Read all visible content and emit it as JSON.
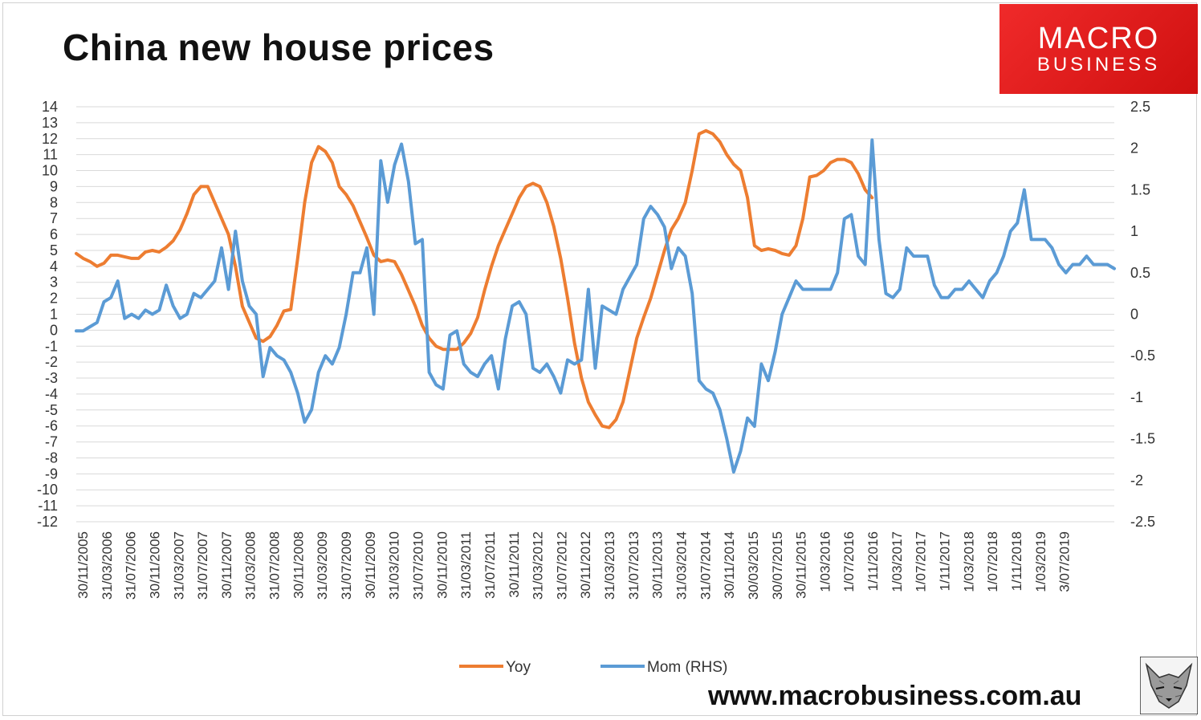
{
  "header": {
    "title": "China new house prices",
    "logo_line1": "MACRO",
    "logo_line2": "BUSINESS"
  },
  "footer": {
    "website": "www.macrobusiness.com.au",
    "fox_icon": "fox-logo-icon"
  },
  "colors": {
    "yoy": "#ED7D31",
    "mom": "#5B9BD5",
    "grid": "#d9d9d9",
    "logo": "#e41e1e"
  },
  "chart_data": {
    "type": "line",
    "title": "China new house prices",
    "x_tick_labels": [
      "30/11/2005",
      "31/03/2006",
      "31/07/2006",
      "30/11/2006",
      "31/03/2007",
      "31/07/2007",
      "30/11/2007",
      "31/03/2008",
      "31/07/2008",
      "30/11/2008",
      "31/03/2009",
      "31/07/2009",
      "30/11/2009",
      "31/03/2010",
      "31/07/2010",
      "30/11/2010",
      "31/03/2011",
      "31/07/2011",
      "30/11/2011",
      "31/03/2012",
      "31/07/2012",
      "30/11/2012",
      "31/03/2013",
      "31/07/2013",
      "30/11/2013",
      "31/03/2014",
      "31/07/2014",
      "30/11/2014",
      "30/03/2015",
      "30/07/2015",
      "30/11/2015",
      "1/03/2016",
      "1/07/2016",
      "1/11/2016",
      "1/03/2017",
      "1/07/2017",
      "1/11/2017",
      "1/03/2018",
      "1/07/2018",
      "1/11/2018",
      "1/03/2019",
      "3/07/2019"
    ],
    "y_left": {
      "min": -12,
      "max": 14,
      "step": 1
    },
    "y_right": {
      "min": -2.5,
      "max": 2.5,
      "step": 0.5,
      "tick_labels": [
        "2.5",
        "2",
        "1.5",
        "1",
        "0.5",
        "0",
        "-0.5",
        "-1",
        "-1.5",
        "-2",
        "-2.5"
      ]
    },
    "legend_position": "bottom",
    "grid": true,
    "series": [
      {
        "name": "Yoy",
        "axis": "left",
        "points": [
          [
            0,
            4.8
          ],
          [
            1,
            4.5
          ],
          [
            2,
            4.3
          ],
          [
            3,
            4.0
          ],
          [
            4,
            4.2
          ],
          [
            5,
            4.7
          ],
          [
            6,
            4.7
          ],
          [
            7,
            4.6
          ],
          [
            8,
            4.5
          ],
          [
            9,
            4.5
          ],
          [
            10,
            4.9
          ],
          [
            11,
            5.0
          ],
          [
            12,
            4.9
          ],
          [
            13,
            5.2
          ],
          [
            14,
            5.6
          ],
          [
            15,
            6.3
          ],
          [
            16,
            7.3
          ],
          [
            17,
            8.5
          ],
          [
            18,
            9.0
          ],
          [
            19,
            9.0
          ],
          [
            20,
            8.0
          ],
          [
            21,
            7.0
          ],
          [
            22,
            6.0
          ],
          [
            23,
            4.0
          ],
          [
            24,
            1.5
          ],
          [
            25,
            0.5
          ],
          [
            26,
            -0.5
          ],
          [
            27,
            -0.7
          ],
          [
            28,
            -0.4
          ],
          [
            29,
            0.3
          ],
          [
            30,
            1.2
          ],
          [
            31,
            1.3
          ],
          [
            32,
            4.5
          ],
          [
            33,
            8.0
          ],
          [
            34,
            10.5
          ],
          [
            35,
            11.5
          ],
          [
            36,
            11.2
          ],
          [
            37,
            10.5
          ],
          [
            38,
            9.0
          ],
          [
            39,
            8.5
          ],
          [
            40,
            7.8
          ],
          [
            41,
            6.8
          ],
          [
            42,
            5.8
          ],
          [
            43,
            4.7
          ],
          [
            44,
            4.3
          ],
          [
            45,
            4.4
          ],
          [
            46,
            4.3
          ],
          [
            47,
            3.5
          ],
          [
            48,
            2.5
          ],
          [
            49,
            1.5
          ],
          [
            50,
            0.3
          ],
          [
            51,
            -0.5
          ],
          [
            52,
            -1.0
          ],
          [
            53,
            -1.2
          ],
          [
            54,
            -1.2
          ],
          [
            55,
            -1.2
          ],
          [
            56,
            -0.8
          ],
          [
            57,
            -0.2
          ],
          [
            58,
            0.8
          ],
          [
            59,
            2.5
          ],
          [
            60,
            4.0
          ],
          [
            61,
            5.3
          ],
          [
            62,
            6.3
          ],
          [
            63,
            7.3
          ],
          [
            64,
            8.3
          ],
          [
            65,
            9.0
          ],
          [
            66,
            9.2
          ],
          [
            67,
            9.0
          ],
          [
            68,
            8.0
          ],
          [
            69,
            6.5
          ],
          [
            70,
            4.5
          ],
          [
            71,
            2.0
          ],
          [
            72,
            -0.8
          ],
          [
            73,
            -3.0
          ],
          [
            74,
            -4.5
          ],
          [
            75,
            -5.3
          ],
          [
            76,
            -6.0
          ],
          [
            77,
            -6.1
          ],
          [
            78,
            -5.6
          ],
          [
            79,
            -4.5
          ],
          [
            80,
            -2.5
          ],
          [
            81,
            -0.5
          ],
          [
            82,
            0.8
          ],
          [
            83,
            2.0
          ],
          [
            84,
            3.5
          ],
          [
            85,
            5.0
          ],
          [
            86,
            6.3
          ],
          [
            87,
            7.0
          ],
          [
            88,
            8.0
          ],
          [
            89,
            10.0
          ],
          [
            90,
            12.3
          ],
          [
            91,
            12.5
          ],
          [
            92,
            12.3
          ],
          [
            93,
            11.8
          ],
          [
            94,
            11.0
          ],
          [
            95,
            10.4
          ],
          [
            96,
            10.0
          ],
          [
            97,
            8.3
          ],
          [
            98,
            5.3
          ],
          [
            99,
            5.0
          ],
          [
            100,
            5.1
          ],
          [
            101,
            5.0
          ],
          [
            102,
            4.8
          ],
          [
            103,
            4.7
          ],
          [
            104,
            5.3
          ],
          [
            105,
            7.0
          ],
          [
            106,
            9.6
          ],
          [
            107,
            9.7
          ],
          [
            108,
            10.0
          ],
          [
            109,
            10.5
          ],
          [
            110,
            10.7
          ],
          [
            111,
            10.7
          ],
          [
            112,
            10.5
          ],
          [
            113,
            9.8
          ],
          [
            114,
            8.8
          ],
          [
            115,
            8.3
          ]
        ]
      },
      {
        "name": "Mom (RHS)",
        "axis": "right",
        "points": [
          [
            0,
            -0.2
          ],
          [
            1,
            -0.2
          ],
          [
            2,
            -0.15
          ],
          [
            3,
            -0.1
          ],
          [
            4,
            0.15
          ],
          [
            5,
            0.2
          ],
          [
            6,
            0.4
          ],
          [
            7,
            -0.05
          ],
          [
            8,
            0.0
          ],
          [
            9,
            -0.05
          ],
          [
            10,
            0.05
          ],
          [
            11,
            0.0
          ],
          [
            12,
            0.05
          ],
          [
            13,
            0.35
          ],
          [
            14,
            0.1
          ],
          [
            15,
            -0.05
          ],
          [
            16,
            0.0
          ],
          [
            17,
            0.25
          ],
          [
            18,
            0.2
          ],
          [
            19,
            0.3
          ],
          [
            20,
            0.4
          ],
          [
            21,
            0.8
          ],
          [
            22,
            0.3
          ],
          [
            23,
            1.0
          ],
          [
            24,
            0.4
          ],
          [
            25,
            0.1
          ],
          [
            26,
            0.0
          ],
          [
            27,
            -0.75
          ],
          [
            28,
            -0.4
          ],
          [
            29,
            -0.5
          ],
          [
            30,
            -0.55
          ],
          [
            31,
            -0.7
          ],
          [
            32,
            -0.95
          ],
          [
            33,
            -1.3
          ],
          [
            34,
            -1.15
          ],
          [
            35,
            -0.7
          ],
          [
            36,
            -0.5
          ],
          [
            37,
            -0.6
          ],
          [
            38,
            -0.4
          ],
          [
            39,
            0.0
          ],
          [
            40,
            0.5
          ],
          [
            41,
            0.5
          ],
          [
            42,
            0.8
          ],
          [
            43,
            0.0
          ],
          [
            44,
            1.85
          ],
          [
            45,
            1.35
          ],
          [
            46,
            1.8
          ],
          [
            47,
            2.05
          ],
          [
            48,
            1.6
          ],
          [
            49,
            0.85
          ],
          [
            50,
            0.9
          ],
          [
            51,
            -0.7
          ],
          [
            52,
            -0.85
          ],
          [
            53,
            -0.9
          ],
          [
            54,
            -0.25
          ],
          [
            55,
            -0.2
          ],
          [
            56,
            -0.6
          ],
          [
            57,
            -0.7
          ],
          [
            58,
            -0.75
          ],
          [
            59,
            -0.6
          ],
          [
            60,
            -0.5
          ],
          [
            61,
            -0.9
          ],
          [
            62,
            -0.3
          ],
          [
            63,
            0.1
          ],
          [
            64,
            0.15
          ],
          [
            65,
            0.0
          ],
          [
            66,
            -0.65
          ],
          [
            67,
            -0.7
          ],
          [
            68,
            -0.6
          ],
          [
            69,
            -0.75
          ],
          [
            70,
            -0.95
          ],
          [
            71,
            -0.55
          ],
          [
            72,
            -0.6
          ],
          [
            73,
            -0.55
          ],
          [
            74,
            0.3
          ],
          [
            75,
            -0.65
          ],
          [
            76,
            0.1
          ],
          [
            77,
            0.05
          ],
          [
            78,
            0.0
          ],
          [
            79,
            0.3
          ],
          [
            80,
            0.45
          ],
          [
            81,
            0.6
          ],
          [
            82,
            1.15
          ],
          [
            83,
            1.3
          ],
          [
            84,
            1.2
          ],
          [
            85,
            1.05
          ],
          [
            86,
            0.55
          ],
          [
            87,
            0.8
          ],
          [
            88,
            0.7
          ],
          [
            89,
            0.25
          ],
          [
            90,
            -0.8
          ],
          [
            91,
            -0.9
          ],
          [
            92,
            -0.95
          ],
          [
            93,
            -1.15
          ],
          [
            94,
            -1.5
          ],
          [
            95,
            -1.9
          ],
          [
            96,
            -1.65
          ],
          [
            97,
            -1.25
          ],
          [
            98,
            -1.35
          ],
          [
            99,
            -0.6
          ],
          [
            100,
            -0.8
          ],
          [
            101,
            -0.45
          ],
          [
            102,
            0.0
          ],
          [
            103,
            0.2
          ],
          [
            104,
            0.4
          ],
          [
            105,
            0.3
          ],
          [
            106,
            0.3
          ],
          [
            107,
            0.3
          ],
          [
            108,
            0.3
          ],
          [
            109,
            0.3
          ],
          [
            110,
            0.5
          ],
          [
            111,
            1.15
          ],
          [
            112,
            1.2
          ],
          [
            113,
            0.7
          ],
          [
            114,
            0.6
          ],
          [
            115,
            2.1
          ],
          [
            116,
            0.9
          ],
          [
            117,
            0.25
          ],
          [
            118,
            0.2
          ],
          [
            119,
            0.3
          ],
          [
            120,
            0.8
          ],
          [
            121,
            0.7
          ],
          [
            122,
            0.7
          ],
          [
            123,
            0.7
          ],
          [
            124,
            0.35
          ],
          [
            125,
            0.2
          ],
          [
            126,
            0.2
          ],
          [
            127,
            0.3
          ],
          [
            128,
            0.3
          ],
          [
            129,
            0.4
          ],
          [
            130,
            0.3
          ],
          [
            131,
            0.2
          ],
          [
            132,
            0.4
          ],
          [
            133,
            0.5
          ],
          [
            134,
            0.7
          ],
          [
            135,
            1.0
          ],
          [
            136,
            1.1
          ],
          [
            137,
            1.5
          ],
          [
            138,
            0.9
          ],
          [
            139,
            0.9
          ],
          [
            140,
            0.9
          ],
          [
            141,
            0.8
          ],
          [
            142,
            0.6
          ],
          [
            143,
            0.5
          ],
          [
            144,
            0.6
          ],
          [
            145,
            0.6
          ],
          [
            146,
            0.7
          ],
          [
            147,
            0.6
          ],
          [
            148,
            0.6
          ],
          [
            149,
            0.6
          ],
          [
            150,
            0.55
          ]
        ]
      }
    ]
  }
}
